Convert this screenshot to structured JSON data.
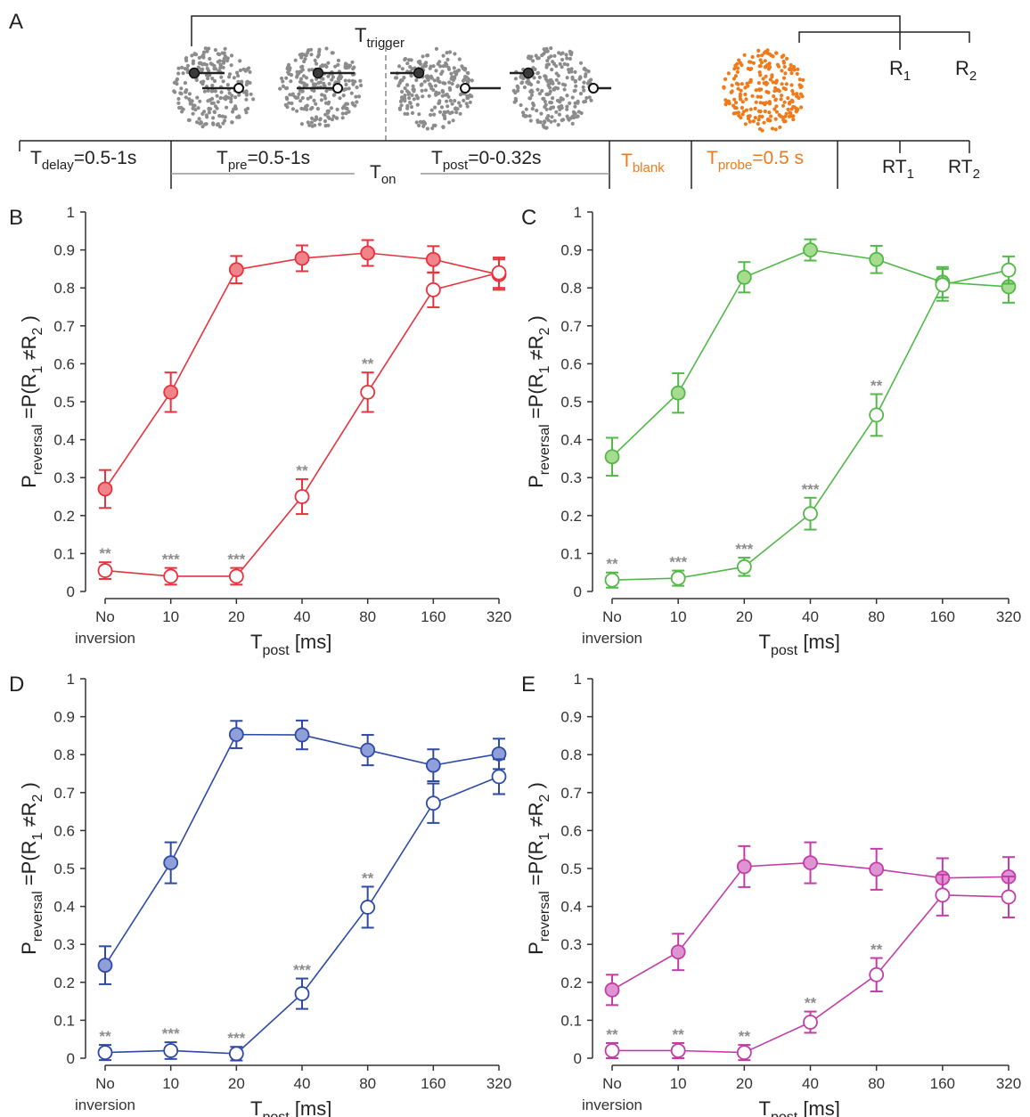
{
  "panel_letters": [
    "A",
    "B",
    "C",
    "D",
    "E"
  ],
  "schematic": {
    "trigger": {
      "main": "T",
      "sub": "trigger"
    },
    "responses": [
      {
        "main": "R",
        "sub": "1"
      },
      {
        "main": "R",
        "sub": "2"
      }
    ],
    "reaction_times": [
      {
        "main": "RT",
        "sub": "1"
      },
      {
        "main": "RT",
        "sub": "2"
      }
    ],
    "intervals": [
      {
        "main": "T",
        "sub": "delay",
        "rest": "=0.5-1s",
        "color": "#222222"
      },
      {
        "main": "T",
        "sub": "pre",
        "rest": "=0.5-1s",
        "color": "#222222"
      },
      {
        "main": "T",
        "sub": "post",
        "rest": "=0-0.32s",
        "color": "#222222"
      },
      {
        "main": "T",
        "sub": "blank",
        "rest": "",
        "color": "#f07a1a"
      },
      {
        "main": "T",
        "sub": "probe",
        "rest": "=0.5 s",
        "color": "#f07a1a"
      }
    ],
    "on_label": {
      "main": "T",
      "sub": "on"
    },
    "dot_colors": {
      "stimulus": "#8c8c8c",
      "probe": "#f07a1a",
      "marker": "#3a3a3a"
    }
  },
  "axis_labels": {
    "y_main": "P",
    "y_sub": "reversal",
    "y_rest": "=P(R",
    "y_sub2": "1",
    "y_mid": " ≠R",
    "y_sub3": "2",
    "y_end": " )",
    "x_main": "T",
    "x_sub": "post",
    "x_rest": "  [ms]"
  },
  "chart_data": [
    {
      "panel": "B",
      "type": "line",
      "color": "#e8323c",
      "fill": "#f0848a",
      "categories": [
        "No inversion",
        "10",
        "20",
        "40",
        "80",
        "160",
        "320"
      ],
      "yticks": [
        "0",
        "0.1",
        "0.2",
        "0.3",
        "0.4",
        "0.5",
        "0.6",
        "0.7",
        "0.8",
        "0.9",
        "1"
      ],
      "ylim": [
        0,
        1
      ],
      "grid": false,
      "series": [
        {
          "filled": true,
          "values": [
            0.27,
            0.525,
            0.848,
            0.878,
            0.892,
            0.875,
            0.835
          ],
          "errors": [
            0.05,
            0.052,
            0.036,
            0.034,
            0.034,
            0.035,
            0.04
          ]
        },
        {
          "filled": false,
          "values": [
            0.055,
            0.04,
            0.04,
            0.25,
            0.525,
            0.795,
            0.84
          ],
          "errors": [
            0.022,
            0.022,
            0.022,
            0.046,
            0.052,
            0.046,
            0.04
          ]
        }
      ],
      "significance": [
        "**",
        "***",
        "***",
        "**",
        "**",
        "",
        ""
      ]
    },
    {
      "panel": "C",
      "type": "line",
      "color": "#52b848",
      "fill": "#a6dc90",
      "categories": [
        "No inversion",
        "10",
        "20",
        "40",
        "80",
        "160",
        "320"
      ],
      "yticks": [
        "0",
        "0.1",
        "0.2",
        "0.3",
        "0.4",
        "0.5",
        "0.6",
        "0.7",
        "0.8",
        "0.9",
        "1"
      ],
      "ylim": [
        0,
        1
      ],
      "grid": false,
      "series": [
        {
          "filled": true,
          "values": [
            0.355,
            0.523,
            0.828,
            0.9,
            0.875,
            0.815,
            0.803
          ],
          "errors": [
            0.05,
            0.052,
            0.04,
            0.028,
            0.036,
            0.04,
            0.042
          ]
        },
        {
          "filled": false,
          "values": [
            0.03,
            0.035,
            0.065,
            0.205,
            0.465,
            0.808,
            0.847
          ],
          "errors": [
            0.02,
            0.02,
            0.024,
            0.042,
            0.055,
            0.042,
            0.036
          ]
        }
      ],
      "significance": [
        "**",
        "***",
        "***",
        "***",
        "**",
        "",
        ""
      ]
    },
    {
      "panel": "D",
      "type": "line",
      "color": "#2e4aa6",
      "fill": "#8f9fd8",
      "categories": [
        "No inversion",
        "10",
        "20",
        "40",
        "80",
        "160",
        "320"
      ],
      "yticks": [
        "0",
        "0.1",
        "0.2",
        "0.3",
        "0.4",
        "0.5",
        "0.6",
        "0.7",
        "0.8",
        "0.9",
        "1"
      ],
      "ylim": [
        0,
        1
      ],
      "grid": false,
      "series": [
        {
          "filled": true,
          "values": [
            0.245,
            0.515,
            0.853,
            0.852,
            0.812,
            0.772,
            0.802
          ],
          "errors": [
            0.05,
            0.054,
            0.036,
            0.038,
            0.04,
            0.042,
            0.04
          ]
        },
        {
          "filled": false,
          "values": [
            0.015,
            0.02,
            0.012,
            0.17,
            0.398,
            0.672,
            0.742
          ],
          "errors": [
            0.02,
            0.022,
            0.018,
            0.04,
            0.054,
            0.052,
            0.046
          ]
        }
      ],
      "significance": [
        "**",
        "***",
        "***",
        "***",
        "**",
        "",
        ""
      ]
    },
    {
      "panel": "E",
      "type": "line",
      "color": "#c23da6",
      "fill": "#de93d2",
      "categories": [
        "No inversion",
        "10",
        "20",
        "40",
        "80",
        "160",
        "320"
      ],
      "yticks": [
        "0",
        "0.1",
        "0.2",
        "0.3",
        "0.4",
        "0.5",
        "0.6",
        "0.7",
        "0.8",
        "0.9",
        "1"
      ],
      "ylim": [
        0,
        1
      ],
      "grid": false,
      "series": [
        {
          "filled": true,
          "values": [
            0.18,
            0.28,
            0.505,
            0.515,
            0.498,
            0.475,
            0.478
          ],
          "errors": [
            0.04,
            0.048,
            0.054,
            0.054,
            0.054,
            0.052,
            0.052
          ]
        },
        {
          "filled": false,
          "values": [
            0.02,
            0.02,
            0.015,
            0.095,
            0.22,
            0.43,
            0.425
          ],
          "errors": [
            0.02,
            0.02,
            0.02,
            0.028,
            0.044,
            0.054,
            0.054
          ]
        }
      ],
      "significance": [
        "**",
        "**",
        "**",
        "**",
        "**",
        "",
        ""
      ]
    }
  ]
}
